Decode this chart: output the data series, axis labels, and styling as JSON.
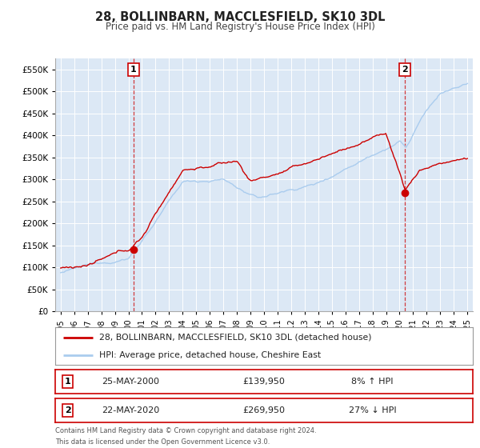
{
  "title": "28, BOLLINBARN, MACCLESFIELD, SK10 3DL",
  "subtitle": "Price paid vs. HM Land Registry's House Price Index (HPI)",
  "bg_color": "#ffffff",
  "plot_bg_color": "#dce8f5",
  "grid_color": "#ffffff",
  "red_line_color": "#cc0000",
  "blue_line_color": "#aaccee",
  "marker_color": "#cc0000",
  "sale1_year": 2000.38,
  "sale1_price": 139950,
  "sale2_year": 2020.38,
  "sale2_price": 269950,
  "ylim_min": 0,
  "ylim_max": 575000,
  "xlim_min": 1994.6,
  "xlim_max": 2025.4,
  "legend_entry1": "28, BOLLINBARN, MACCLESFIELD, SK10 3DL (detached house)",
  "legend_entry2": "HPI: Average price, detached house, Cheshire East",
  "table_row1": [
    "1",
    "25-MAY-2000",
    "£139,950",
    "8% ↑ HPI"
  ],
  "table_row2": [
    "2",
    "22-MAY-2020",
    "£269,950",
    "27% ↓ HPI"
  ],
  "footnote1": "Contains HM Land Registry data © Crown copyright and database right 2024.",
  "footnote2": "This data is licensed under the Open Government Licence v3.0.",
  "badge_color": "#cc0000"
}
